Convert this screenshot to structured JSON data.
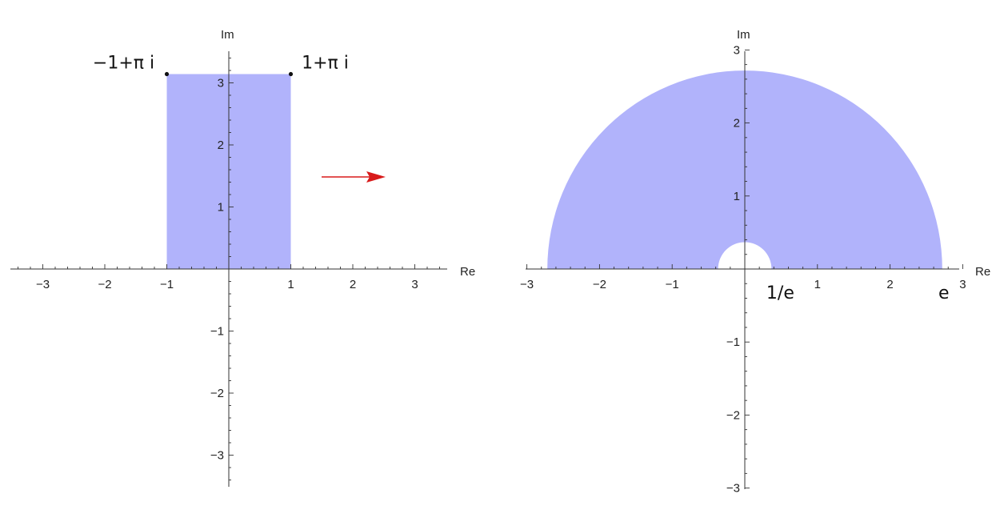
{
  "colors": {
    "region_fill": "#b1b3fb",
    "axis": "#333333",
    "arrow": "#d81a1a",
    "point": "#111111",
    "background": "#ffffff"
  },
  "arrow": {
    "icon": "right-arrow-icon"
  },
  "left_plot": {
    "xlabel": "Re",
    "ylabel": "Im",
    "x_ticks": [
      "−3",
      "−2",
      "−1",
      "1",
      "2",
      "3"
    ],
    "y_ticks": [
      "−3",
      "−2",
      "−1",
      "1",
      "2",
      "3"
    ],
    "xlim": [
      -3.5,
      3.5
    ],
    "ylim": [
      -3.5,
      3.5
    ],
    "region": {
      "shape": "rectangle",
      "x": [
        -1,
        1
      ],
      "y": [
        0,
        3.1416
      ]
    },
    "points": [
      {
        "label": "−1+π i",
        "x": -1,
        "y": 3.1416
      },
      {
        "label": "1+π i",
        "x": 1,
        "y": 3.1416
      }
    ]
  },
  "right_plot": {
    "xlabel": "Re",
    "ylabel": "Im",
    "x_ticks": [
      "−3",
      "−2",
      "−1",
      "1",
      "2",
      "3"
    ],
    "y_ticks": [
      "−3",
      "−2",
      "−1",
      "1",
      "2",
      "3"
    ],
    "xlim": [
      -3,
      3
    ],
    "ylim": [
      -3,
      3
    ],
    "region": {
      "shape": "half-annulus",
      "inner_radius": 0.3679,
      "outer_radius": 2.7183
    },
    "annotations": [
      {
        "label": "1/e",
        "x": 0.3679
      },
      {
        "label": "e",
        "x": 2.7183
      }
    ]
  }
}
